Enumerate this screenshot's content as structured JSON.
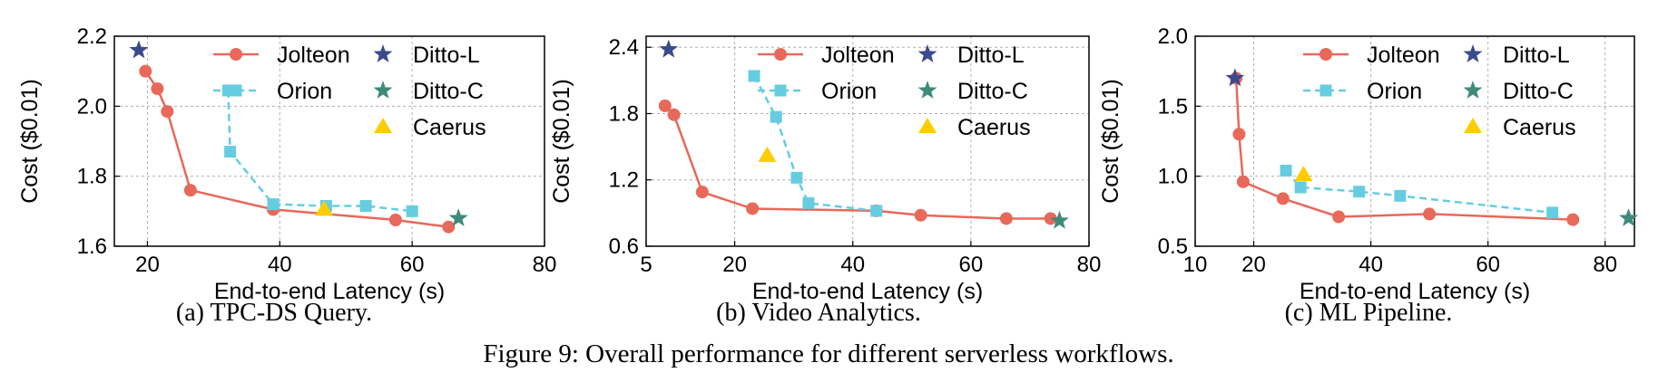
{
  "figure_caption": "Figure 9: Overall performance for different serverless workflows.",
  "colors": {
    "Jolteon": "#e8685a",
    "Orion": "#66cde0",
    "Ditto-L": "#3b4a8c",
    "Ditto-C": "#3f8a7c",
    "Caerus": "#ffcc00"
  },
  "chart_data": [
    {
      "type": "line",
      "caption": "(a) TPC-DS Query.",
      "xlabel": "End-to-end Latency (s)",
      "ylabel": "Cost ($0.01)",
      "xlim": [
        15,
        80
      ],
      "ylim": [
        1.6,
        2.2
      ],
      "xticks": [
        "20",
        "40",
        "60",
        "80"
      ],
      "yticks": [
        "1.6",
        "1.8",
        "2.0",
        "2.2"
      ],
      "grid": true,
      "legend_position": "top-right",
      "series": [
        {
          "name": "Jolteon",
          "marker": "circle",
          "line": "solid",
          "points": [
            [
              19.7,
              2.1
            ],
            [
              21.5,
              2.05
            ],
            [
              23,
              1.985
            ],
            [
              26.5,
              1.76
            ],
            [
              39,
              1.705
            ],
            [
              57.5,
              1.675
            ],
            [
              65.5,
              1.655
            ]
          ]
        },
        {
          "name": "Orion",
          "marker": "square",
          "line": "dashed",
          "points": [
            [
              32.2,
              2.045
            ],
            [
              32.5,
              1.87
            ],
            [
              39,
              1.72
            ],
            [
              47,
              1.715
            ],
            [
              53,
              1.715
            ],
            [
              60,
              1.7
            ]
          ]
        },
        {
          "name": "Ditto-L",
          "marker": "star",
          "points": [
            [
              18.7,
              2.16
            ]
          ]
        },
        {
          "name": "Ditto-C",
          "marker": "star",
          "points": [
            [
              67,
              1.68
            ]
          ]
        },
        {
          "name": "Caerus",
          "marker": "triangle",
          "points": [
            [
              46.7,
              1.705
            ]
          ]
        }
      ]
    },
    {
      "type": "line",
      "caption": "(b) Video Analytics.",
      "xlabel": "End-to-end Latency (s)",
      "ylabel": "Cost ($0.01)",
      "xlim": [
        5,
        80
      ],
      "ylim": [
        0.6,
        2.5
      ],
      "xticks": [
        "5",
        "20",
        "40",
        "60",
        "80"
      ],
      "xtick_values": [
        5,
        20,
        40,
        60,
        80
      ],
      "yticks": [
        "0.6",
        "1.2",
        "1.8",
        "2.4"
      ],
      "grid": true,
      "legend_position": "top-right",
      "series": [
        {
          "name": "Jolteon",
          "marker": "circle",
          "line": "solid",
          "points": [
            [
              8.2,
              1.87
            ],
            [
              9.7,
              1.79
            ],
            [
              14.5,
              1.09
            ],
            [
              23,
              0.94
            ],
            [
              44,
              0.92
            ],
            [
              51.5,
              0.88
            ],
            [
              66,
              0.85
            ],
            [
              73.5,
              0.85
            ]
          ]
        },
        {
          "name": "Orion",
          "marker": "square",
          "line": "dashed",
          "points": [
            [
              23.3,
              2.14
            ],
            [
              27,
              1.77
            ],
            [
              30.5,
              1.22
            ],
            [
              32.5,
              0.99
            ],
            [
              44,
              0.92
            ]
          ]
        },
        {
          "name": "Ditto-L",
          "marker": "star",
          "points": [
            [
              8.8,
              2.38
            ]
          ]
        },
        {
          "name": "Ditto-C",
          "marker": "star",
          "points": [
            [
              75,
              0.83
            ]
          ]
        },
        {
          "name": "Caerus",
          "marker": "triangle",
          "points": [
            [
              25.5,
              1.42
            ]
          ]
        }
      ]
    },
    {
      "type": "line",
      "caption": "(c) ML Pipeline.",
      "xlabel": "End-to-end Latency (s)",
      "ylabel": "Cost ($0.01)",
      "xlim": [
        10,
        85
      ],
      "ylim": [
        0.5,
        2.0
      ],
      "xticks": [
        "10",
        "20",
        "40",
        "60",
        "80"
      ],
      "xtick_values": [
        10,
        20,
        40,
        60,
        80
      ],
      "yticks": [
        "0.5",
        "1.0",
        "1.5",
        "2.0"
      ],
      "grid": true,
      "legend_position": "top-right",
      "series": [
        {
          "name": "Jolteon",
          "marker": "circle",
          "line": "solid",
          "points": [
            [
              17,
              1.7
            ],
            [
              17.5,
              1.3
            ],
            [
              18.2,
              0.96
            ],
            [
              25,
              0.84
            ],
            [
              34.5,
              0.71
            ],
            [
              50,
              0.73
            ],
            [
              74.5,
              0.69
            ]
          ]
        },
        {
          "name": "Orion",
          "marker": "square",
          "line": "dashed",
          "points": [
            [
              25.5,
              1.04
            ],
            [
              28,
              0.92
            ],
            [
              38,
              0.89
            ],
            [
              45,
              0.86
            ],
            [
              71,
              0.74
            ]
          ]
        },
        {
          "name": "Ditto-L",
          "marker": "star",
          "points": [
            [
              16.8,
              1.7
            ]
          ]
        },
        {
          "name": "Ditto-C",
          "marker": "star",
          "points": [
            [
              84,
              0.7
            ]
          ]
        },
        {
          "name": "Caerus",
          "marker": "triangle",
          "points": [
            [
              28.5,
              1.01
            ]
          ]
        }
      ]
    }
  ]
}
